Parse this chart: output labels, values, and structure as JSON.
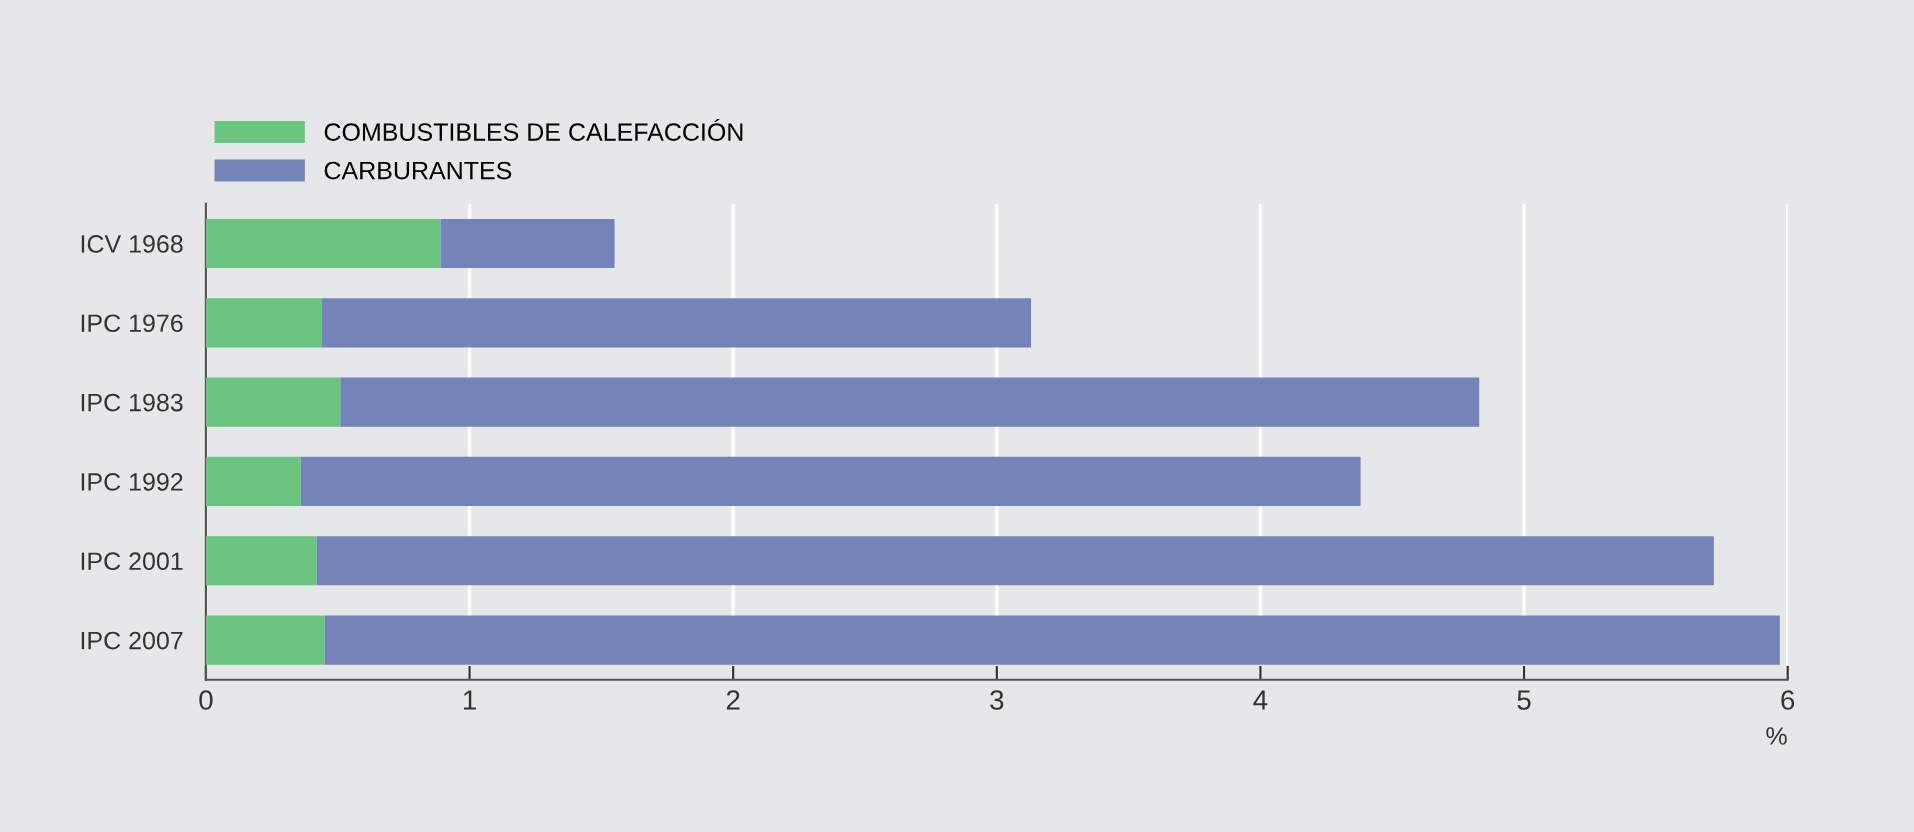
{
  "chart_data": {
    "type": "bar",
    "orientation": "horizontal",
    "stacked": true,
    "categories": [
      "ICV 1968",
      "IPC 1976",
      "IPC 1983",
      "IPC 1992",
      "IPC 2001",
      "IPC 2007"
    ],
    "series": [
      {
        "name": "COMBUSTIBLES DE CALEFACCIÓN",
        "color": "#6cc481",
        "values": [
          0.89,
          0.44,
          0.51,
          0.36,
          0.42,
          0.45
        ]
      },
      {
        "name": "CARBURANTES",
        "color": "#7484b8",
        "values": [
          0.66,
          2.69,
          4.32,
          4.02,
          5.3,
          5.52
        ]
      }
    ],
    "xlim": [
      0,
      6
    ],
    "xticks": [
      0,
      1,
      2,
      3,
      4,
      5,
      6
    ],
    "xlabel": "%",
    "grid": "x",
    "legend": "top left"
  }
}
